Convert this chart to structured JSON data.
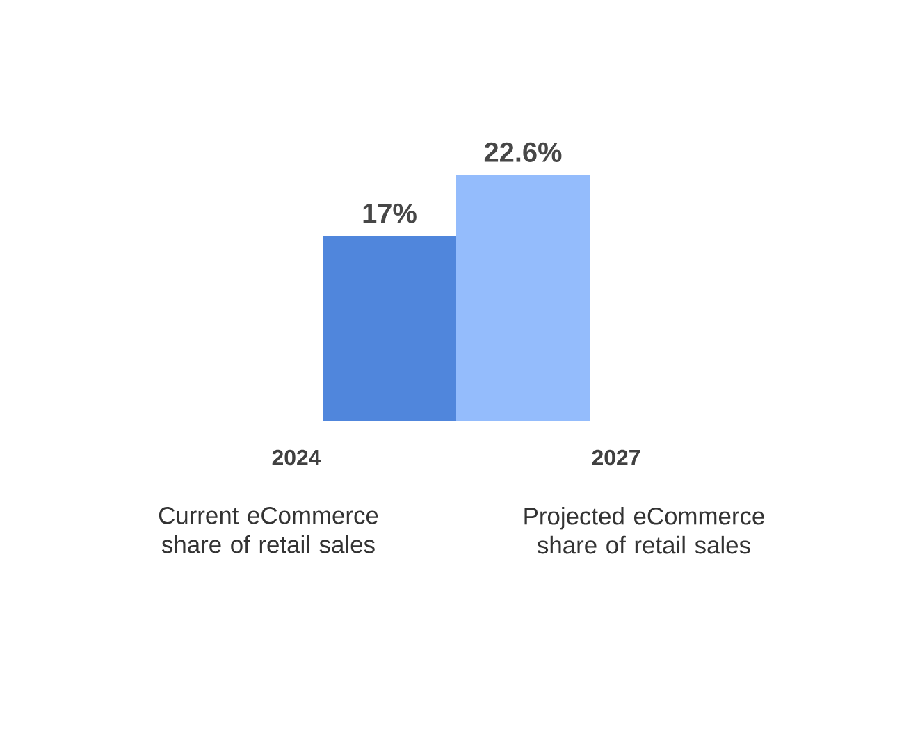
{
  "chart_data": {
    "type": "bar",
    "categories": [
      "2024",
      "2027"
    ],
    "values": [
      17,
      22.6
    ],
    "value_labels": [
      "17%",
      "22.6%"
    ],
    "colors": [
      "#5086dc",
      "#94bcfc"
    ],
    "annotations": [
      "Current eCommerce share of retail sales",
      "Projected eCommerce share of retail sales"
    ]
  }
}
